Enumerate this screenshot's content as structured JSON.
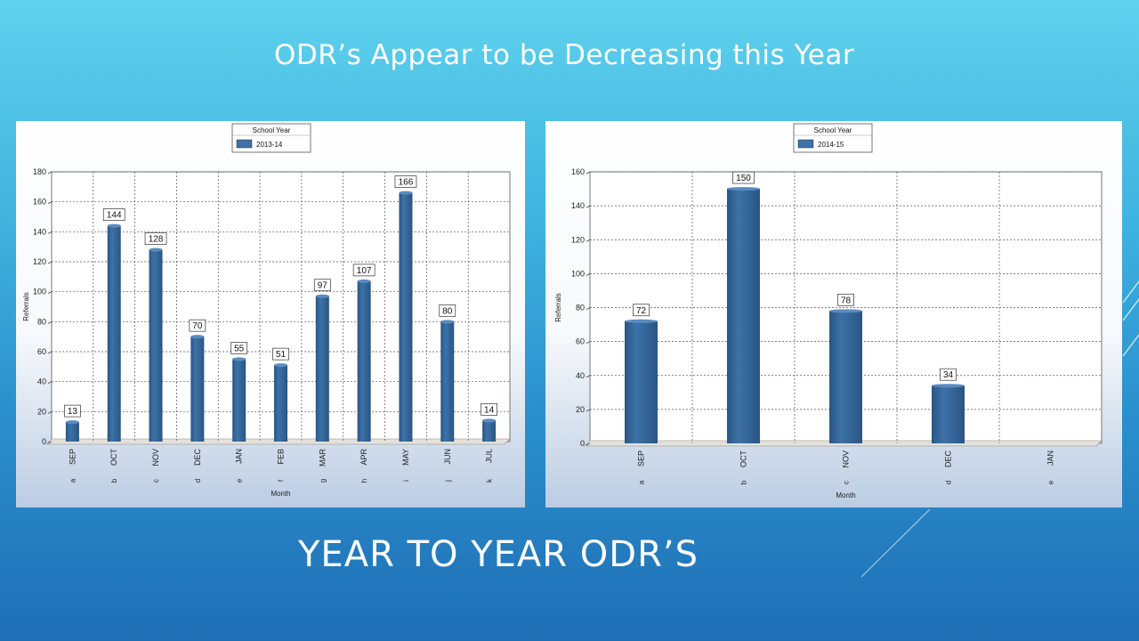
{
  "slide": {
    "title": "ODR’s Appear to be Decreasing this Year",
    "heading": "YEAR TO YEAR ODR’S"
  },
  "colors": {
    "bar": "#3d72a8",
    "bar_dark": "#2a5584",
    "title_text": "#ffffff"
  },
  "chart_data": [
    {
      "type": "bar",
      "legend_title": "School Year",
      "series": [
        {
          "name": "2013-14",
          "values": [
            13,
            144,
            128,
            70,
            55,
            51,
            97,
            107,
            166,
            80,
            14
          ]
        }
      ],
      "categories": [
        "SEP",
        "OCT",
        "NOV",
        "DEC",
        "JAN",
        "FEB",
        "MAR",
        "APR",
        "MAY",
        "JUN",
        "JUL"
      ],
      "category_letters": [
        "a",
        "b",
        "c",
        "d",
        "e",
        "f",
        "g",
        "h",
        "i",
        "j",
        "k"
      ],
      "xlabel": "Month",
      "ylabel": "Referrals",
      "ylim": [
        0,
        180
      ],
      "yticks": [
        0,
        20,
        40,
        60,
        80,
        100,
        120,
        140,
        160,
        180
      ],
      "grid": true,
      "legend_position": "top-center"
    },
    {
      "type": "bar",
      "legend_title": "School Year",
      "series": [
        {
          "name": "2014-15",
          "values": [
            72,
            150,
            78,
            34,
            null
          ]
        }
      ],
      "categories": [
        "SEP",
        "OCT",
        "NOV",
        "DEC",
        "JAN"
      ],
      "category_letters": [
        "a",
        "b",
        "c",
        "d",
        "e"
      ],
      "xlabel": "Month",
      "ylabel": "Referrals",
      "ylim": [
        0,
        160
      ],
      "yticks": [
        0,
        20,
        40,
        60,
        80,
        100,
        120,
        140,
        160
      ],
      "grid": true,
      "legend_position": "top-center"
    }
  ]
}
